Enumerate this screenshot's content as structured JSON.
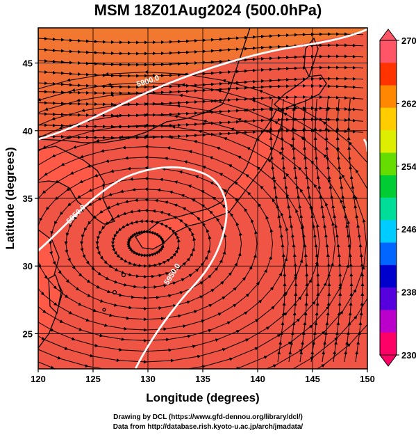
{
  "title": "MSM 18Z01Aug2024 (500.0hPa)",
  "credits": {
    "line1": "Drawing by DCL (https://www.gfd-dennou.org/library/dcl/)",
    "line2": "Data from http://database.rish.kyoto-u.ac.jp/arch/jmadata/"
  },
  "map": {
    "xlabel": "Longitude (degrees)",
    "ylabel": "Latitude  (degrees)",
    "xlim": [
      120,
      150
    ],
    "ylim": [
      22.4,
      47.6
    ],
    "x_ticks": [
      120,
      125,
      130,
      135,
      140,
      145,
      150
    ],
    "y_ticks": [
      25,
      30,
      35,
      40,
      45
    ],
    "grid": true,
    "contour_labels": [
      "5900.0",
      "5950.0",
      "5950.0"
    ],
    "field_color": "#f0503c",
    "land_color": "#ff5544",
    "contour_color": "#ffffff"
  },
  "colorbar": {
    "tick_labels": [
      "270",
      "262",
      "254",
      "246",
      "238",
      "230"
    ],
    "min": 230,
    "max": 270,
    "colors": [
      "#ff0066",
      "#bb00cc",
      "#5500dd",
      "#0000cc",
      "#0066ff",
      "#00ccff",
      "#00dd99",
      "#00cc33",
      "#66dd00",
      "#ddee00",
      "#ffcc00",
      "#ff8800",
      "#ff3300",
      "#ff5566"
    ]
  }
}
